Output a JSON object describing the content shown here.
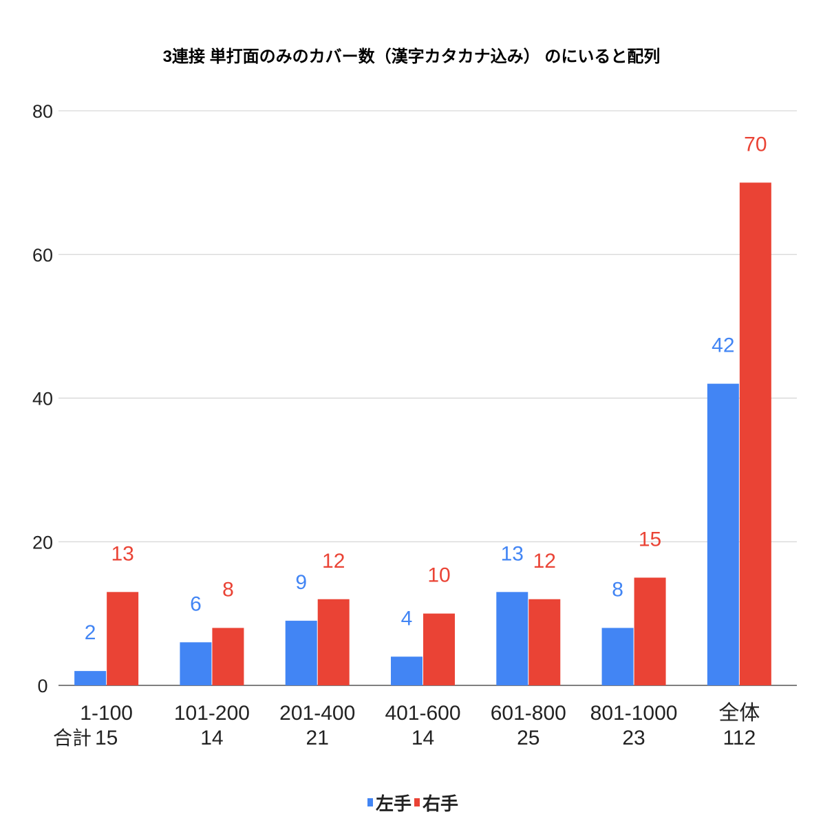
{
  "chart_data": {
    "type": "bar",
    "title": "3連接 単打面のみのカバー数（漢字カタカナ込み） のにいると配列",
    "categories": [
      "1-100",
      "101-200",
      "201-400",
      "401-600",
      "601-800",
      "801-1000",
      "全体"
    ],
    "row_label": "合計",
    "totals": [
      "15",
      "14",
      "21",
      "14",
      "25",
      "23",
      "112"
    ],
    "series": [
      {
        "name": "左手",
        "color": "#4285f4",
        "values": [
          2,
          6,
          9,
          4,
          13,
          8,
          42
        ]
      },
      {
        "name": "右手",
        "color": "#ea4335",
        "values": [
          13,
          8,
          12,
          10,
          12,
          15,
          70
        ]
      }
    ],
    "ylim": [
      0,
      80
    ],
    "yticks": [
      0,
      20,
      40,
      60,
      80
    ],
    "grid": true,
    "legend": "bottom",
    "xlabel": "",
    "ylabel": ""
  }
}
